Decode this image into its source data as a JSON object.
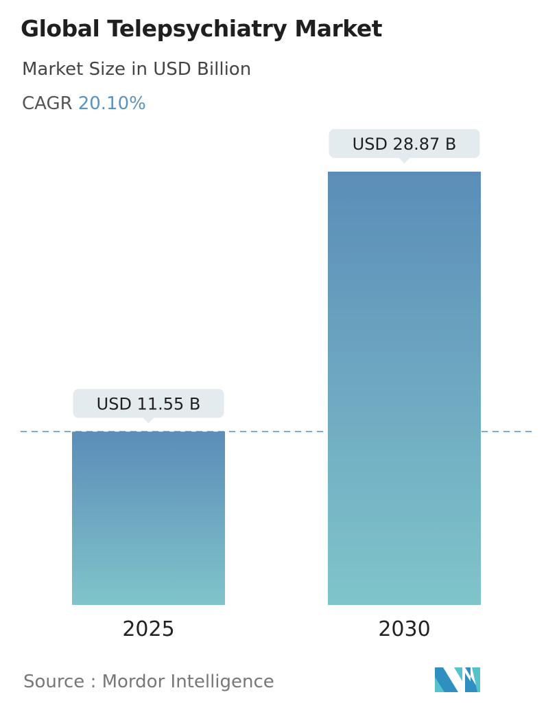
{
  "header": {
    "title": "Global Telepsychiatry Market",
    "subtitle": "Market Size in USD Billion",
    "cagr_label": "CAGR",
    "cagr_value": "20.10%"
  },
  "chart_data": {
    "type": "bar",
    "categories": [
      "2025",
      "2030"
    ],
    "values": [
      11.55,
      28.87
    ],
    "data_labels": [
      "USD 11.55 B",
      "USD 28.87 B"
    ],
    "unit": "USD Billion",
    "ylim": [
      0,
      28.87
    ],
    "grid": false,
    "reference_line": {
      "value": 11.55,
      "style": "dashed"
    },
    "colors": {
      "bar_top": "#5b8db8",
      "bar_bottom": "#80c4ca",
      "label_bg": "#e3ebee",
      "dashed_line": "#5a87a8"
    }
  },
  "footer": {
    "source": "Source :  Mordor Intelligence",
    "logo_text": "Mordor Intelligence"
  }
}
